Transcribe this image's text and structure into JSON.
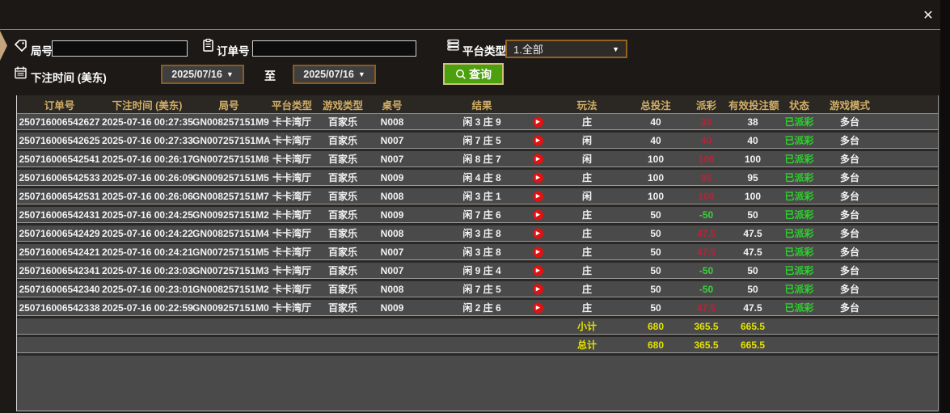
{
  "window": {
    "close_label": "✕"
  },
  "icons": {
    "round": "tag-icon",
    "order": "clipboard-icon",
    "platform": "list-icon",
    "bet_time": "calendar-icon",
    "query": "search-icon",
    "result_replay": "play-icon",
    "close": "close-icon"
  },
  "colors": {
    "accent_border_orange": "#96621f",
    "query_green": "#4ca00e",
    "header_gold": "#d1ae66",
    "payout_positive_red": "#b5243a",
    "payout_negative_green": "#3bd13b",
    "status_green": "#2dd22d",
    "totals_yellow": "#e3e300",
    "row_gray": "#4a4a4a"
  },
  "filters": {
    "round_label": "局号",
    "round_value": "",
    "order_label": "订单号",
    "order_value": "",
    "platform_label": "平台类型",
    "platform_value": "1.全部",
    "bet_time_label": "下注时间 (美东)",
    "date_from": "2025/07/16",
    "to_label": "至",
    "date_to": "2025/07/16",
    "query_label": "查询",
    "caret": "▼"
  },
  "table": {
    "headers": [
      "订单号",
      "下注时间 (美东)",
      "局号",
      "平台类型",
      "游戏类型",
      "桌号",
      "结果",
      "玩法",
      "总投注",
      "派彩",
      "有效投注额",
      "状态",
      "游戏模式"
    ],
    "rows": [
      {
        "order_id": "250716006542627",
        "bet_time": "2025-07-16 00:27:35",
        "round_id": "GN008257151M9",
        "platform": "卡卡湾厅",
        "game_type": "百家乐",
        "table_no": "N008",
        "result": "闲 3 庄 9",
        "play_type": "庄",
        "total_bet": "40",
        "payout": "38",
        "valid_bet": "38",
        "status": "已派彩",
        "game_mode": "多台"
      },
      {
        "order_id": "250716006542625",
        "bet_time": "2025-07-16 00:27:33",
        "round_id": "GN007257151MA",
        "platform": "卡卡湾厅",
        "game_type": "百家乐",
        "table_no": "N007",
        "result": "闲 7 庄 5",
        "play_type": "闲",
        "total_bet": "40",
        "payout": "40",
        "valid_bet": "40",
        "status": "已派彩",
        "game_mode": "多台"
      },
      {
        "order_id": "250716006542541",
        "bet_time": "2025-07-16 00:26:17",
        "round_id": "GN007257151M8",
        "platform": "卡卡湾厅",
        "game_type": "百家乐",
        "table_no": "N007",
        "result": "闲 8 庄 7",
        "play_type": "闲",
        "total_bet": "100",
        "payout": "100",
        "valid_bet": "100",
        "status": "已派彩",
        "game_mode": "多台"
      },
      {
        "order_id": "250716006542533",
        "bet_time": "2025-07-16 00:26:09",
        "round_id": "GN009257151M5",
        "platform": "卡卡湾厅",
        "game_type": "百家乐",
        "table_no": "N009",
        "result": "闲 4 庄 8",
        "play_type": "庄",
        "total_bet": "100",
        "payout": "95",
        "valid_bet": "95",
        "status": "已派彩",
        "game_mode": "多台"
      },
      {
        "order_id": "250716006542531",
        "bet_time": "2025-07-16 00:26:06",
        "round_id": "GN008257151M7",
        "platform": "卡卡湾厅",
        "game_type": "百家乐",
        "table_no": "N008",
        "result": "闲 3 庄 1",
        "play_type": "闲",
        "total_bet": "100",
        "payout": "100",
        "valid_bet": "100",
        "status": "已派彩",
        "game_mode": "多台"
      },
      {
        "order_id": "250716006542431",
        "bet_time": "2025-07-16 00:24:25",
        "round_id": "GN009257151M2",
        "platform": "卡卡湾厅",
        "game_type": "百家乐",
        "table_no": "N009",
        "result": "闲 7 庄 6",
        "play_type": "庄",
        "total_bet": "50",
        "payout": "-50",
        "valid_bet": "50",
        "status": "已派彩",
        "game_mode": "多台"
      },
      {
        "order_id": "250716006542429",
        "bet_time": "2025-07-16 00:24:22",
        "round_id": "GN008257151M4",
        "platform": "卡卡湾厅",
        "game_type": "百家乐",
        "table_no": "N008",
        "result": "闲 3 庄 8",
        "play_type": "庄",
        "total_bet": "50",
        "payout": "47.5",
        "valid_bet": "47.5",
        "status": "已派彩",
        "game_mode": "多台"
      },
      {
        "order_id": "250716006542421",
        "bet_time": "2025-07-16 00:24:21",
        "round_id": "GN007257151M5",
        "platform": "卡卡湾厅",
        "game_type": "百家乐",
        "table_no": "N007",
        "result": "闲 3 庄 8",
        "play_type": "庄",
        "total_bet": "50",
        "payout": "47.5",
        "valid_bet": "47.5",
        "status": "已派彩",
        "game_mode": "多台"
      },
      {
        "order_id": "250716006542341",
        "bet_time": "2025-07-16 00:23:03",
        "round_id": "GN007257151M3",
        "platform": "卡卡湾厅",
        "game_type": "百家乐",
        "table_no": "N007",
        "result": "闲 9 庄 4",
        "play_type": "庄",
        "total_bet": "50",
        "payout": "-50",
        "valid_bet": "50",
        "status": "已派彩",
        "game_mode": "多台"
      },
      {
        "order_id": "250716006542340",
        "bet_time": "2025-07-16 00:23:01",
        "round_id": "GN008257151M2",
        "platform": "卡卡湾厅",
        "game_type": "百家乐",
        "table_no": "N008",
        "result": "闲 7 庄 5",
        "play_type": "庄",
        "total_bet": "50",
        "payout": "-50",
        "valid_bet": "50",
        "status": "已派彩",
        "game_mode": "多台"
      },
      {
        "order_id": "250716006542338",
        "bet_time": "2025-07-16 00:22:59",
        "round_id": "GN009257151M0",
        "platform": "卡卡湾厅",
        "game_type": "百家乐",
        "table_no": "N009",
        "result": "闲 2 庄 6",
        "play_type": "庄",
        "total_bet": "50",
        "payout": "47.5",
        "valid_bet": "47.5",
        "status": "已派彩",
        "game_mode": "多台"
      }
    ],
    "subtotal": {
      "label": "小计",
      "total_bet": "680",
      "payout": "365.5",
      "valid_bet": "665.5"
    },
    "total": {
      "label": "总计",
      "total_bet": "680",
      "payout": "365.5",
      "valid_bet": "665.5"
    }
  }
}
